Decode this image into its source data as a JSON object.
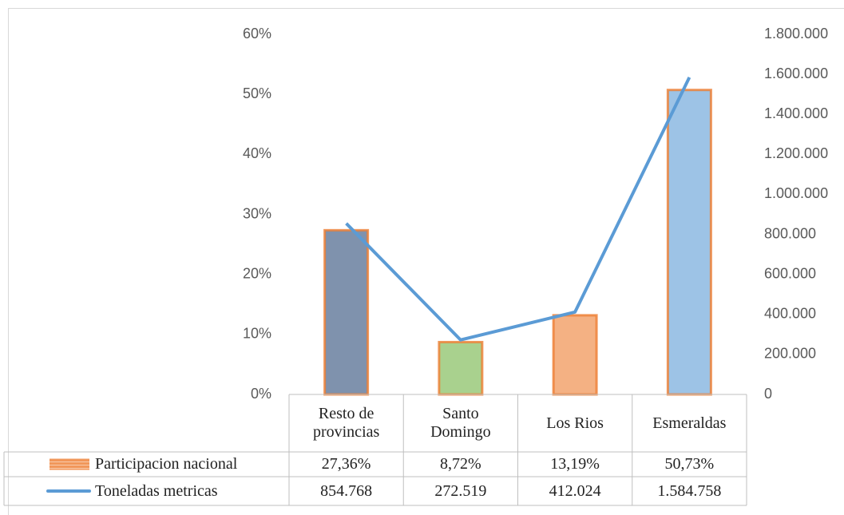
{
  "chart_data": {
    "type": "combo",
    "categories": [
      "Resto de provincias",
      "Santo Domingo",
      "Los Rios",
      "Esmeraldas"
    ],
    "series": [
      {
        "name": "Participacion nacional",
        "type": "bar",
        "color": "#ed7d31",
        "colors": [
          "#7f92ad",
          "#a9d18e",
          "#f4b183",
          "#9dc3e6"
        ],
        "values": [
          27.36,
          8.72,
          13.19,
          50.73
        ],
        "value_labels": [
          "27,36%",
          "8,72%",
          "13,19%",
          "50,73%"
        ]
      },
      {
        "name": "Toneladas metricas",
        "type": "line",
        "axis": "y2",
        "color": "#5b9bd5",
        "values": [
          854768,
          272519,
          412024,
          1584758
        ],
        "value_labels": [
          "854.768",
          "272.519",
          "412.024",
          "1.584.758"
        ]
      }
    ],
    "ylim": [
      0,
      60
    ],
    "yticks": [
      {
        "value": 0,
        "label": "0%"
      },
      {
        "value": 10,
        "label": "10%"
      },
      {
        "value": 20,
        "label": "20%"
      },
      {
        "value": 30,
        "label": "30%"
      },
      {
        "value": 40,
        "label": "40%"
      },
      {
        "value": 50,
        "label": "50%"
      },
      {
        "value": 60,
        "label": "60%"
      }
    ],
    "y2lim": [
      0,
      1800000
    ],
    "y2ticks": [
      0,
      {
        "value": 200000,
        "label": "200.000"
      },
      {
        "value": 400000,
        "label": "400.000"
      },
      {
        "value": 600000,
        "label": "600.000"
      },
      {
        "value": 800000,
        "label": "800.000"
      },
      {
        "value": 1000000,
        "label": "1.000.000"
      },
      {
        "value": 1200000,
        "label": "1.200.000"
      },
      {
        "value": 1400000,
        "label": "1.400.000"
      },
      {
        "value": 1600000,
        "label": "1.600.000"
      },
      {
        "value": 1800000,
        "label": "1.800.000"
      }
    ],
    "grid": false,
    "data_table": true
  }
}
